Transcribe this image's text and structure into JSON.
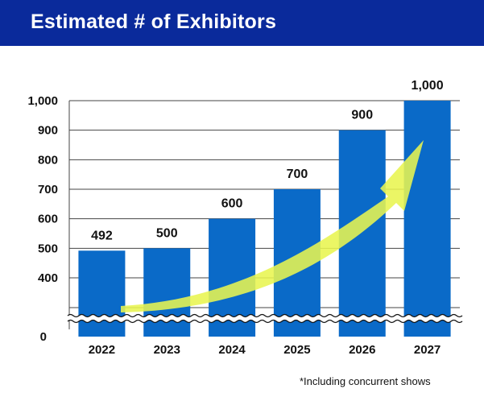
{
  "header": {
    "title": "Estimated # of Exhibitors"
  },
  "footnote": "*Including concurrent shows",
  "colors": {
    "header_bg": "#0a2a9b",
    "bar": "#0a6ac8",
    "arrow": "#e8f550",
    "grid": "#444444"
  },
  "chart_data": {
    "type": "bar",
    "title": "Estimated # of Exhibitors",
    "xlabel": "",
    "ylabel": "",
    "categories": [
      "2022",
      "2023",
      "2024",
      "2025",
      "2026",
      "2027"
    ],
    "values": [
      492,
      500,
      600,
      700,
      900,
      1000
    ],
    "data_labels": [
      "492",
      "500",
      "600",
      "700",
      "900",
      "1,000"
    ],
    "y_ticks": [
      400,
      500,
      600,
      700,
      800,
      900,
      1000
    ],
    "y_tick_labels": [
      "400",
      "500",
      "600",
      "700",
      "800",
      "900",
      "1,000"
    ],
    "y_zero_label": "0",
    "ylim": [
      300,
      1000
    ],
    "axis_break": true,
    "grid": true,
    "trend_arrow": "rising",
    "note": "*Including concurrent shows"
  }
}
